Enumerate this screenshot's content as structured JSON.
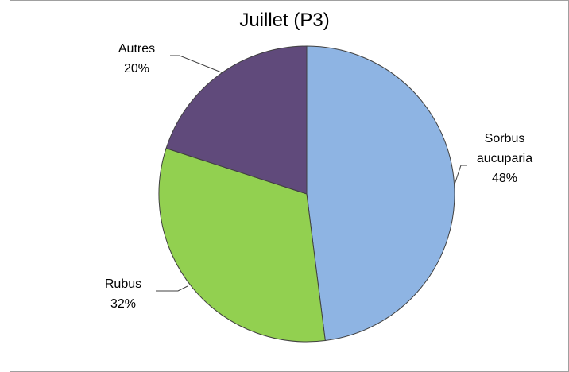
{
  "chart_data": {
    "type": "pie",
    "title": "Juillet (P3)",
    "categories": [
      "Sorbus aucuparia",
      "Rubus",
      "Autres"
    ],
    "values": [
      48,
      32,
      20
    ],
    "value_labels": [
      "48%",
      "32%",
      "20%"
    ],
    "colors": [
      "#8eb4e3",
      "#92d050",
      "#604a7b"
    ]
  }
}
